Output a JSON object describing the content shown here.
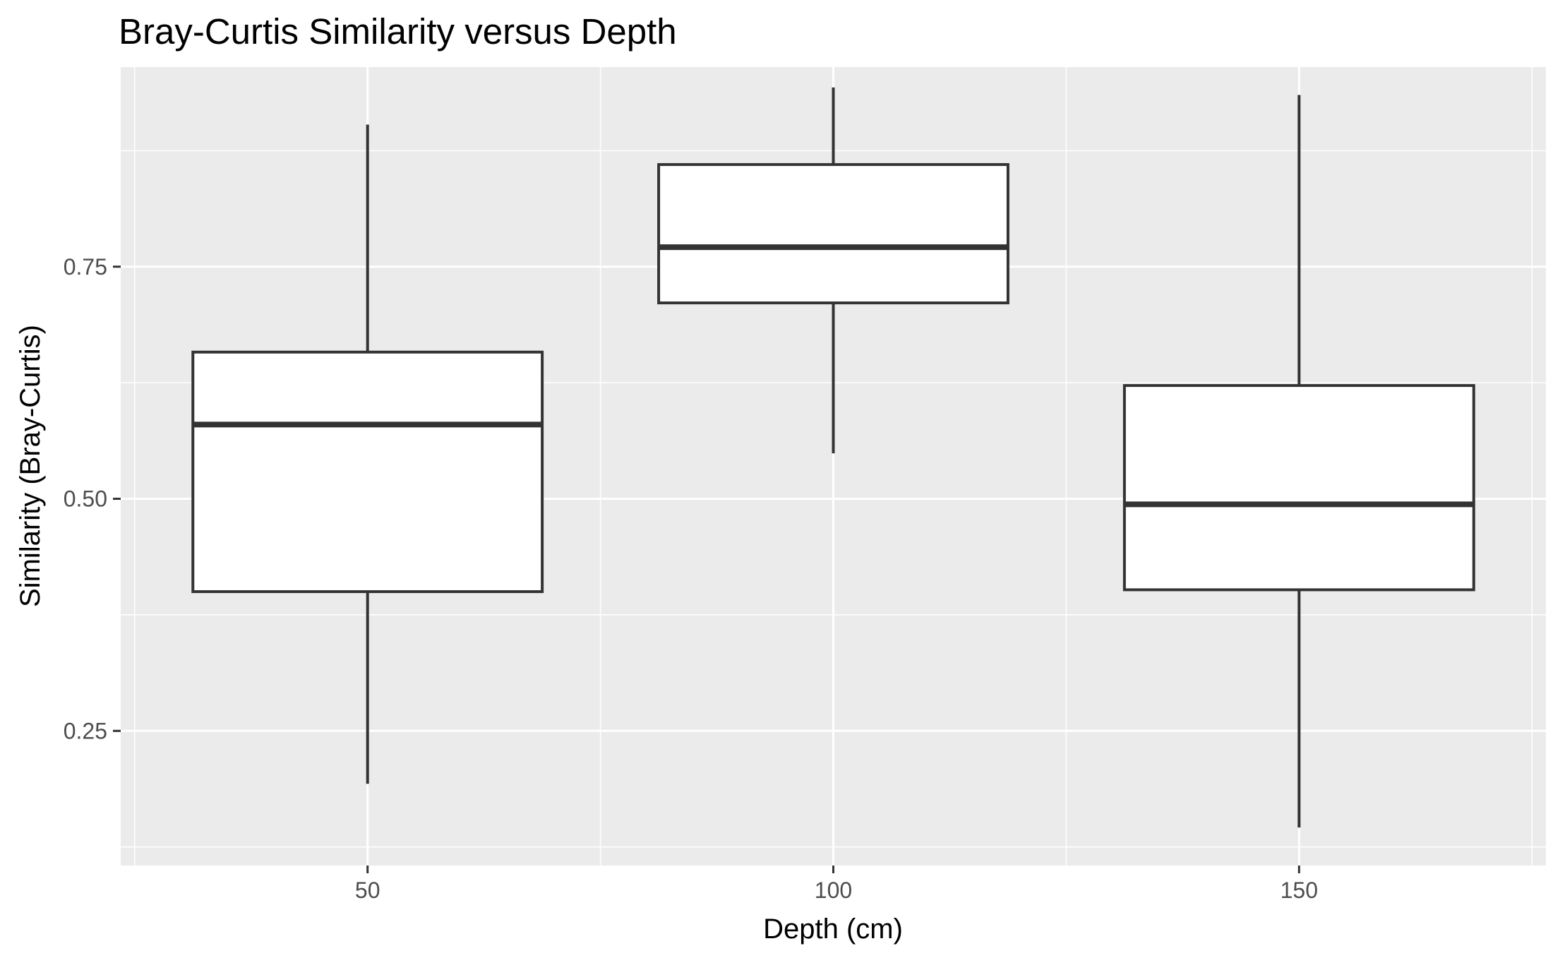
{
  "chart_data": {
    "type": "box",
    "title": "Bray-Curtis Similarity versus Depth",
    "xlabel": "Depth (cm)",
    "ylabel": "Similarity (Bray-Curtis)",
    "xlim": [
      23.5,
      176.5
    ],
    "ylim": [
      0.105,
      0.965
    ],
    "x_ticks": [
      50,
      100,
      150
    ],
    "x_minor_ticks": [
      25,
      75,
      125,
      175
    ],
    "y_ticks": [
      0.25,
      0.5,
      0.75
    ],
    "y_minor_ticks": [
      0.125,
      0.375,
      0.625,
      0.875
    ],
    "x_tick_labels": [
      "50",
      "100",
      "150"
    ],
    "y_tick_labels": [
      "0.25",
      "0.50",
      "0.75"
    ],
    "box_width": 37.5,
    "grid": true,
    "boxes": [
      {
        "x": 50,
        "min": 0.193,
        "q1": 0.4,
        "median": 0.58,
        "q3": 0.658,
        "max": 0.903
      },
      {
        "x": 100,
        "min": 0.549,
        "q1": 0.711,
        "median": 0.771,
        "q3": 0.86,
        "max": 0.943
      },
      {
        "x": 150,
        "min": 0.146,
        "q1": 0.402,
        "median": 0.494,
        "q3": 0.622,
        "max": 0.935
      }
    ],
    "colors": {
      "panel": "#ebebeb",
      "grid": "#ffffff",
      "box_fill": "#ffffff",
      "box_line": "#333333",
      "tick": "#333333"
    }
  }
}
